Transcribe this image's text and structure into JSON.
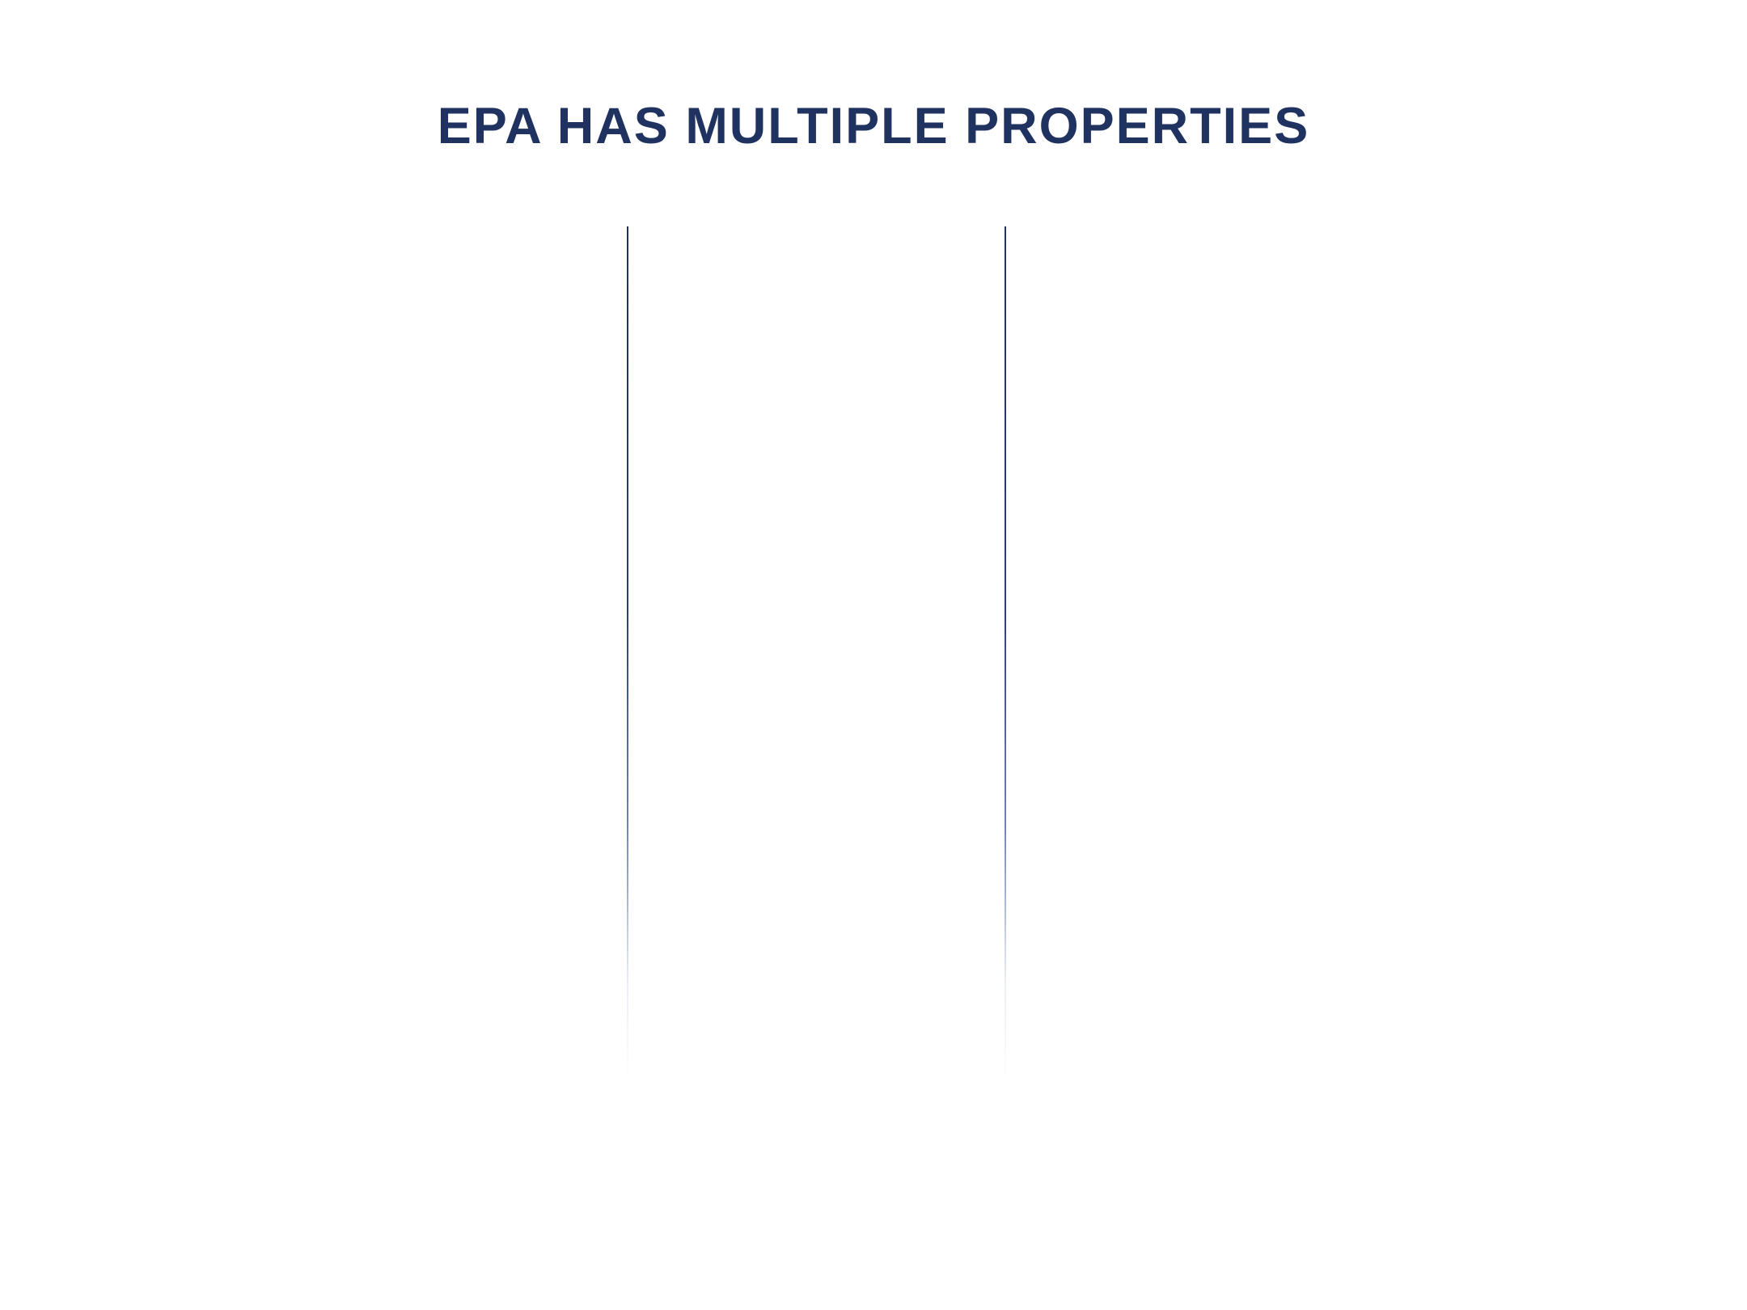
{
  "slide": {
    "title": "EPA HAS MULTIPLE PROPERTIES"
  },
  "colors": {
    "title": "#1f3260",
    "divider": "#1f3260",
    "background": "#ffffff"
  }
}
